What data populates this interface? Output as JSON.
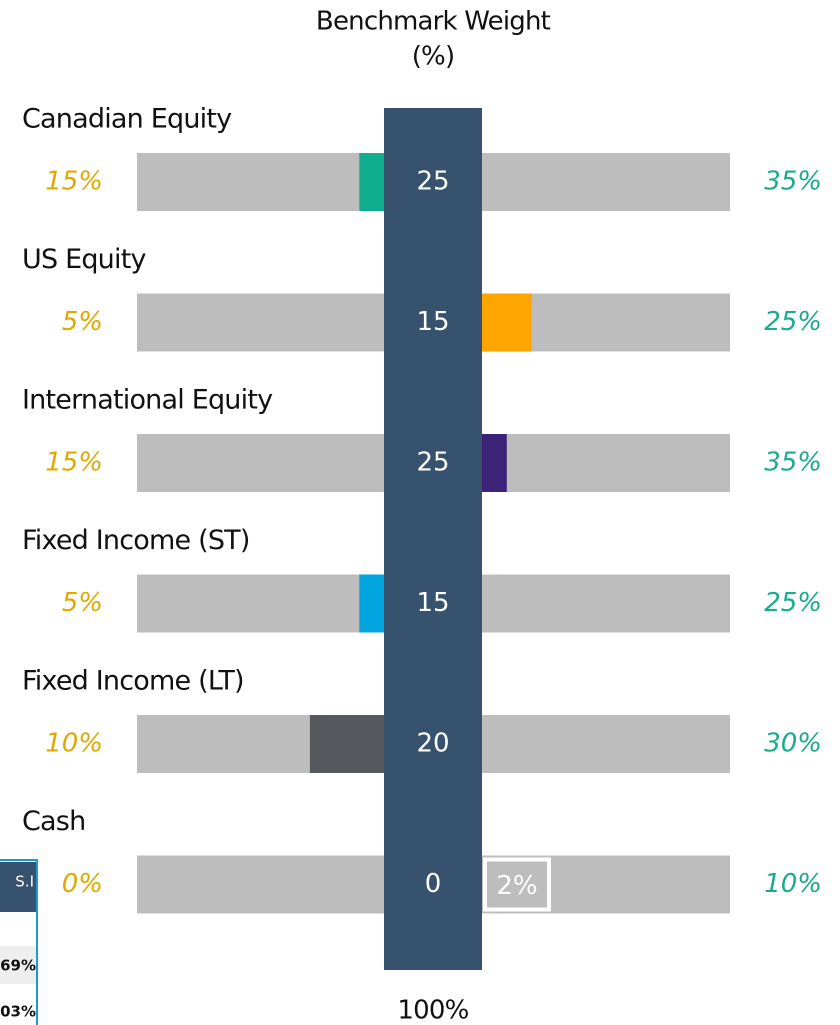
{
  "header": {
    "title_line1": "Benchmark Weight",
    "title_line2": "(%)"
  },
  "rows": [
    {
      "label": "Canadian Equity",
      "min": {
        "value": 15,
        "label": "15%"
      },
      "benchmark": 25,
      "max": {
        "value": 35,
        "label": "35%"
      },
      "weight": 24,
      "color": "#0fae8e"
    },
    {
      "label": "US Equity",
      "min": {
        "value": 5,
        "label": "5%"
      },
      "benchmark": 15,
      "max": {
        "value": 25,
        "label": "25%"
      },
      "weight": 17,
      "color": "#ffa400"
    },
    {
      "label": "International Equity",
      "min": {
        "value": 15,
        "label": "15%"
      },
      "benchmark": 25,
      "max": {
        "value": 35,
        "label": "35%"
      },
      "weight": 26,
      "color": "#3d2378"
    },
    {
      "label": "Fixed Income (ST)",
      "min": {
        "value": 5,
        "label": "5%"
      },
      "benchmark": 15,
      "max": {
        "value": 25,
        "label": "25%"
      },
      "weight": 14,
      "color": "#03a5e0"
    },
    {
      "label": "Fixed Income (LT)",
      "min": {
        "value": 10,
        "label": "10%"
      },
      "benchmark": 20,
      "max": {
        "value": 30,
        "label": "30%"
      },
      "weight": 17,
      "color": "#55585d"
    },
    {
      "label": "Cash",
      "min": {
        "value": 0,
        "label": "0%"
      },
      "benchmark": 0,
      "max": {
        "value": 10,
        "label": "10%"
      },
      "weight": 2,
      "weight_label": "2%",
      "color": "#bcbdbc"
    }
  ],
  "total": "100%",
  "side_panel": {
    "header": "S.I",
    "cells": [
      "69%",
      "03%"
    ]
  }
}
